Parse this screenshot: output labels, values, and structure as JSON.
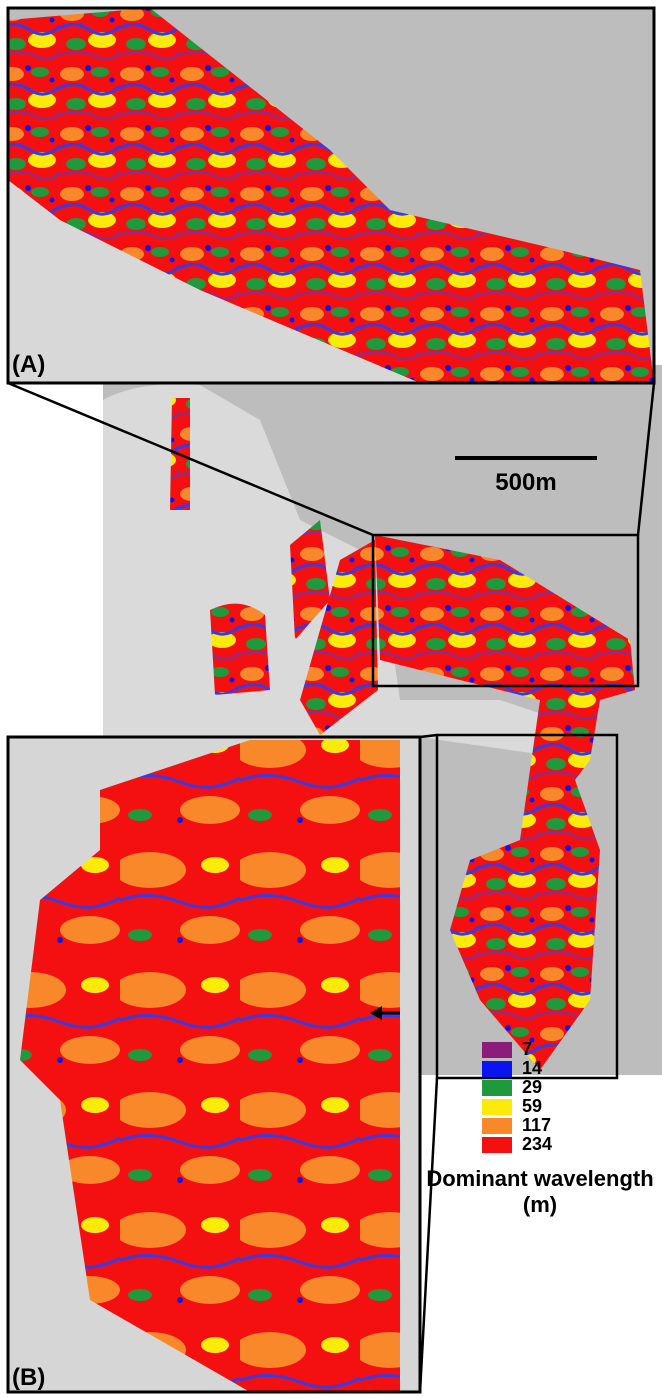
{
  "panels": [
    {
      "label": "(A)"
    },
    {
      "label": "(B)"
    }
  ],
  "scale_bar": "500m",
  "legend": {
    "title": "Dominant wavelength (m)",
    "items": [
      {
        "value": 7,
        "color": "#8c1c7c"
      },
      {
        "value": 14,
        "color": "#0a14f0"
      },
      {
        "value": 29,
        "color": "#1e9a3c"
      },
      {
        "value": 59,
        "color": "#fbea0a"
      },
      {
        "value": 117,
        "color": "#f8882a"
      },
      {
        "value": 234,
        "color": "#f41010"
      }
    ]
  }
}
